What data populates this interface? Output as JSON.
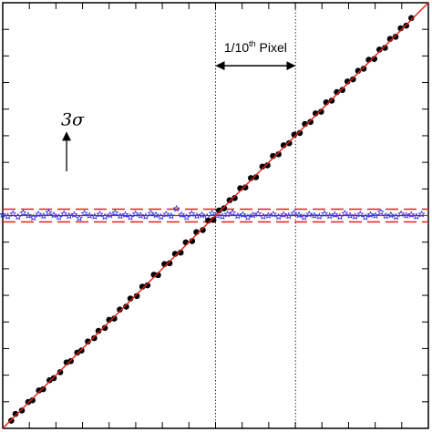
{
  "chart_data": {
    "type": "scatter",
    "title": "",
    "xlabel": "",
    "ylabel": "",
    "grid": false,
    "annotations": {
      "pixel_label_main": "1/10",
      "pixel_label_sup": "th",
      "pixel_label_tail": " Pixel",
      "sigma_label": "3σ"
    },
    "colors": {
      "fit_line": "#e0201b",
      "points": "#000000",
      "point_highlight": "#c81e1e",
      "residuals": "#2a2ae0",
      "band": "#e0201b",
      "axes": "#000000",
      "guides": "#000000"
    },
    "series": [
      {
        "kind": "measured",
        "x": [
          0.02,
          0.03,
          0.045,
          0.06,
          0.07,
          0.085,
          0.095,
          0.11,
          0.12,
          0.135,
          0.15,
          0.16,
          0.175,
          0.185,
          0.2,
          0.215,
          0.225,
          0.24,
          0.25,
          0.262,
          0.275,
          0.29,
          0.3,
          0.315,
          0.328,
          0.34,
          0.355,
          0.365,
          0.38,
          0.392,
          0.405,
          0.418,
          0.43,
          0.445,
          0.455,
          0.47,
          0.483,
          0.495,
          0.508,
          0.52,
          0.533,
          0.545,
          0.558,
          0.57,
          0.583,
          0.595,
          0.61,
          0.622,
          0.635,
          0.648,
          0.66,
          0.673,
          0.685,
          0.698,
          0.71,
          0.723,
          0.735,
          0.748,
          0.76,
          0.773,
          0.785,
          0.798,
          0.81,
          0.823,
          0.835,
          0.848,
          0.86,
          0.873,
          0.885,
          0.898,
          0.91,
          0.923,
          0.935,
          0.948,
          0.96
        ],
        "y": [
          0.018,
          0.034,
          0.042,
          0.062,
          0.066,
          0.089,
          0.092,
          0.113,
          0.118,
          0.132,
          0.155,
          0.158,
          0.178,
          0.183,
          0.204,
          0.212,
          0.229,
          0.236,
          0.255,
          0.258,
          0.279,
          0.286,
          0.305,
          0.311,
          0.333,
          0.336,
          0.361,
          0.36,
          0.386,
          0.388,
          0.41,
          0.413,
          0.437,
          0.44,
          0.461,
          0.466,
          0.488,
          0.49,
          0.512,
          0.517,
          0.536,
          0.541,
          0.564,
          0.566,
          0.588,
          0.59,
          0.615,
          0.618,
          0.64,
          0.644,
          0.665,
          0.67,
          0.69,
          0.694,
          0.715,
          0.72,
          0.74,
          0.744,
          0.766,
          0.77,
          0.79,
          0.795,
          0.815,
          0.82,
          0.84,
          0.845,
          0.866,
          0.868,
          0.89,
          0.894,
          0.915,
          0.92,
          0.94,
          0.946,
          0.964
        ]
      },
      {
        "kind": "residual",
        "x": [
          0.0,
          0.012,
          0.024,
          0.036,
          0.048,
          0.06,
          0.072,
          0.084,
          0.096,
          0.108,
          0.12,
          0.132,
          0.144,
          0.156,
          0.168,
          0.18,
          0.192,
          0.204,
          0.216,
          0.228,
          0.24,
          0.252,
          0.264,
          0.276,
          0.288,
          0.3,
          0.312,
          0.324,
          0.336,
          0.348,
          0.36,
          0.372,
          0.384,
          0.396,
          0.408,
          0.42,
          0.432,
          0.444,
          0.456,
          0.468,
          0.48,
          0.492,
          0.504,
          0.516,
          0.528,
          0.54,
          0.552,
          0.564,
          0.576,
          0.588,
          0.6,
          0.612,
          0.624,
          0.636,
          0.648,
          0.66,
          0.672,
          0.684,
          0.696,
          0.708,
          0.72,
          0.732,
          0.744,
          0.756,
          0.768,
          0.78,
          0.792,
          0.804,
          0.816,
          0.828,
          0.84,
          0.852,
          0.864,
          0.876,
          0.888,
          0.9,
          0.912,
          0.924,
          0.936,
          0.948,
          0.96,
          0.972,
          0.984
        ],
        "y": [
          0.502,
          0.498,
          0.504,
          0.497,
          0.506,
          0.5,
          0.495,
          0.503,
          0.499,
          0.507,
          0.501,
          0.496,
          0.504,
          0.499,
          0.502,
          0.494,
          0.505,
          0.5,
          0.498,
          0.503,
          0.497,
          0.501,
          0.506,
          0.499,
          0.502,
          0.496,
          0.504,
          0.5,
          0.498,
          0.505,
          0.501,
          0.497,
          0.503,
          0.499,
          0.516,
          0.502,
          0.496,
          0.504,
          0.499,
          0.501,
          0.497,
          0.505,
          0.5,
          0.498,
          0.503,
          0.506,
          0.499,
          0.502,
          0.496,
          0.501,
          0.504,
          0.498,
          0.5,
          0.503,
          0.497,
          0.502,
          0.499,
          0.505,
          0.501,
          0.496,
          0.503,
          0.5,
          0.498,
          0.504,
          0.499,
          0.502,
          0.497,
          0.505,
          0.5,
          0.498,
          0.503,
          0.496,
          0.502,
          0.5,
          0.508,
          0.499,
          0.501,
          0.497,
          0.504,
          0.5,
          0.502,
          0.498,
          0.503
        ]
      }
    ],
    "fit_line": {
      "x": [
        0.0,
        1.0
      ],
      "y": [
        0.0,
        1.0
      ]
    },
    "band": {
      "center": 0.5,
      "lower": 0.485,
      "upper": 0.515
    },
    "guides": {
      "x": [
        0.5,
        0.688
      ]
    },
    "pixel_arrow": {
      "x_from": 0.5,
      "x_to": 0.688,
      "y": 0.852
    },
    "sigma_arrow": {
      "x": 0.15,
      "y_from": 0.604,
      "y_to": 0.695
    }
  }
}
